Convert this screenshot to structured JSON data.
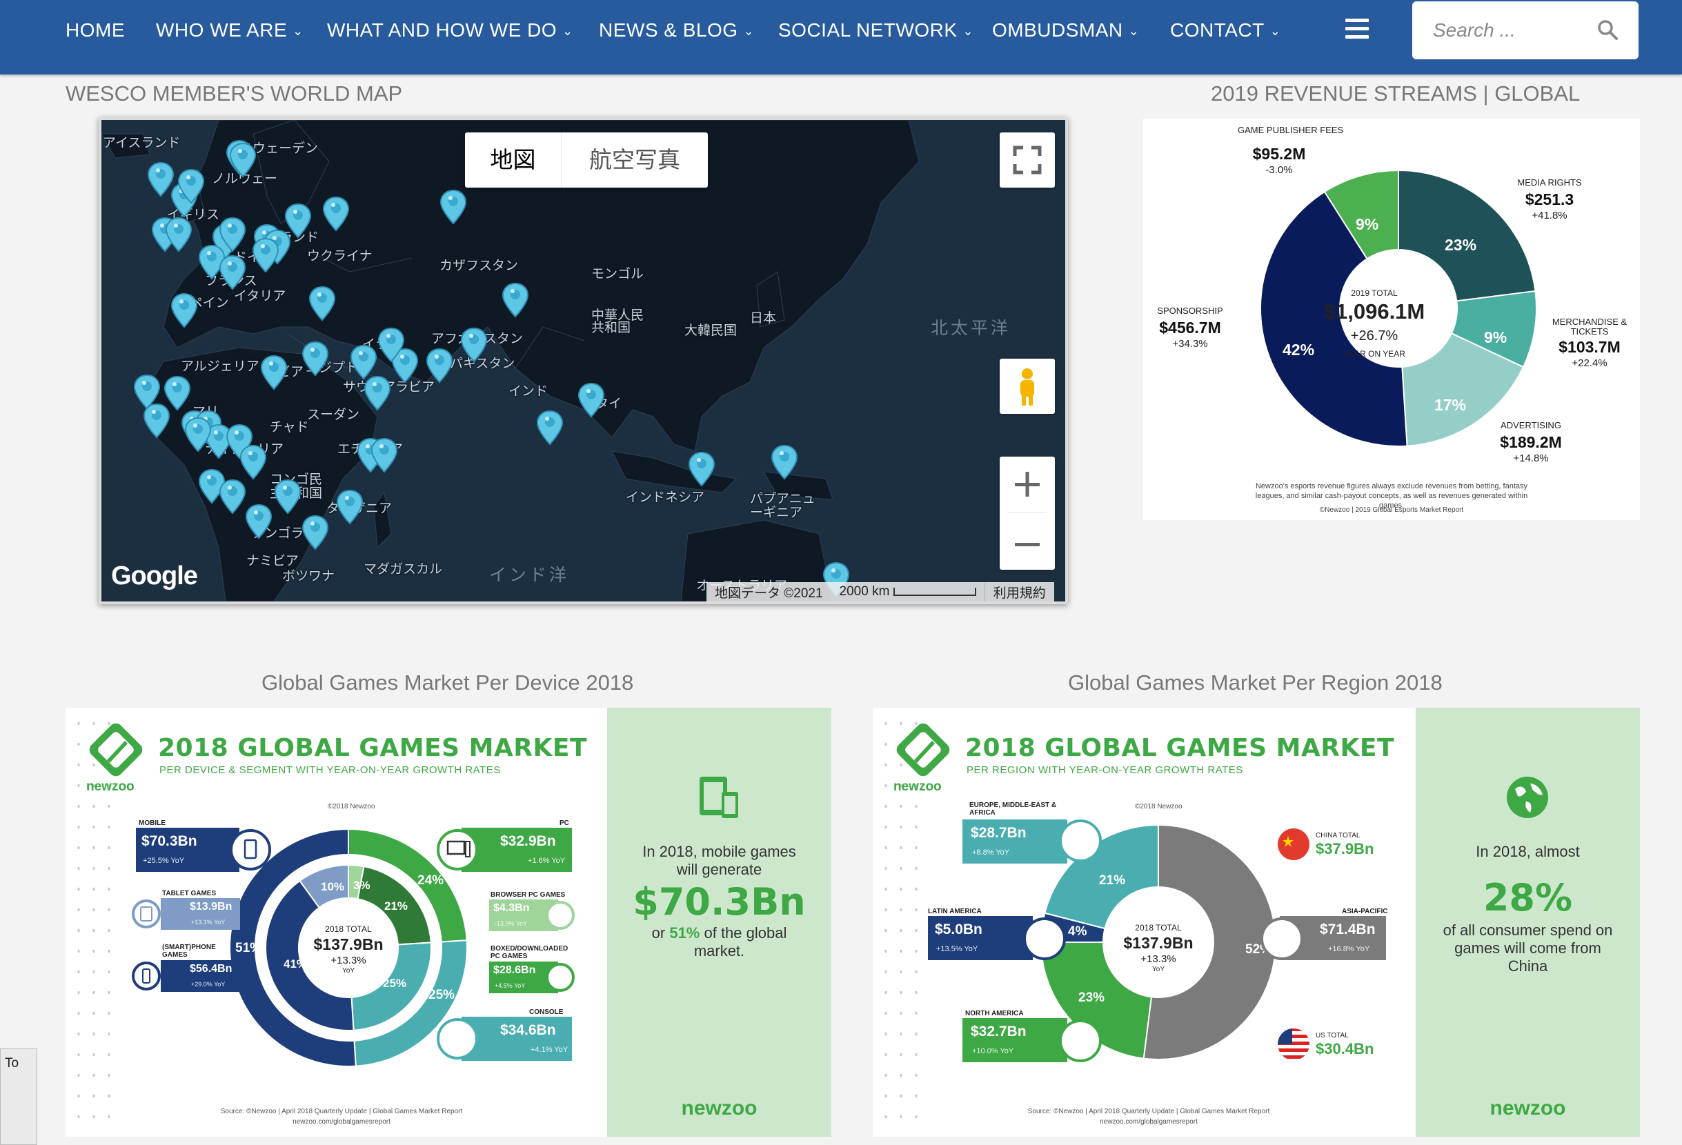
{
  "nav": {
    "items": [
      {
        "label": "HOME",
        "has_menu": false
      },
      {
        "label": "WHO WE ARE",
        "has_menu": true
      },
      {
        "label": "WHAT AND HOW WE DO",
        "has_menu": true
      },
      {
        "label": "NEWS & BLOG",
        "has_menu": true
      },
      {
        "label": "SOCIAL NETWORK",
        "has_menu": true
      },
      {
        "label": "OMBUDSMAN",
        "has_menu": true
      },
      {
        "label": "CONTACT",
        "has_menu": true
      }
    ],
    "chevron": "⌄",
    "search_placeholder": "Search ...",
    "bg_color": "#275b9d"
  },
  "map_section": {
    "title": "WESCO MEMBER'S WORLD MAP",
    "map_type_map": "地図",
    "map_type_satellite": "航空写真",
    "google": "Google",
    "attribution": "地図データ ©2021",
    "scale": "2000 km",
    "terms": "利用規約",
    "labels": {
      "iceland": "アイスランド",
      "sweden": "スウェーデン",
      "norway": "ノルウェー",
      "uk": "イギリス",
      "poland": "ポーランド",
      "germany": "ドイツ",
      "ukraine": "ウクライナ",
      "france": "フランス",
      "italy": "イタリア",
      "spain": "スペイン",
      "kazakhstan": "カザフスタン",
      "mongolia": "モンゴル",
      "china": "中華人民共和国",
      "korea": "大韓民国",
      "japan": "日本",
      "iraq": "イラク",
      "afghanistan": "アフガニスタン",
      "pakistan": "パキスタン",
      "india": "インド",
      "algeria": "アルジェリア",
      "libya": "リビア",
      "egypt": "エジプト",
      "saudi": "サウジアラビア",
      "thailand": "タイ",
      "mali": "マリ",
      "chad": "チャド",
      "sudan": "スーダン",
      "nigeria": "ナイジェリア",
      "ethiopia": "エチオピア",
      "congo": "コンゴ民主共和国",
      "tanzania": "タンザニア",
      "indonesia": "インドネシア",
      "png": "パプアニューギニア",
      "angola": "アンゴラ",
      "namibia": "ナミビア",
      "botswana": "ボツワナ",
      "madagascar": "マダガスカル",
      "australia": "オーストラリア",
      "north_pacific": "北太平洋",
      "indian_ocean": "インド洋"
    }
  },
  "revenue": {
    "title": "2019 REVENUE STREAMS | GLOBAL",
    "center_caption": "2019 TOTAL",
    "center_value": "$1,096.1M",
    "center_growth": "+26.7%",
    "center_growth_caption": "YEAR ON YEAR",
    "streams": [
      {
        "name": "GAME PUBLISHER FEES",
        "value": "$95.2M",
        "growth": "-3.0%",
        "share": "9%",
        "color": "#4caf50"
      },
      {
        "name": "MEDIA RIGHTS",
        "value": "$251.3",
        "growth": "+41.8%",
        "share": "23%",
        "color": "#1e5158"
      },
      {
        "name": "MERCHANDISE & TICKETS",
        "value": "$103.7M",
        "growth": "+22.4%",
        "share": "9%",
        "color": "#4aaea0"
      },
      {
        "name": "ADVERTISING",
        "value": "$189.2M",
        "growth": "+14.8%",
        "share": "17%",
        "color": "#95cec7"
      },
      {
        "name": "SPONSORSHIP",
        "value": "$456.7M",
        "growth": "+34.3%",
        "share": "42%",
        "color": "#0a1b5c"
      }
    ],
    "footnote": "Newzoo's esports revenue figures always exclude revenues from betting, fantasy leagues, and similar cash-payout concepts, as well as revenues generated within games.",
    "credit": "©Newzoo | 2019 Global Esports Market Report"
  },
  "device": {
    "section_title": "Global Games Market Per Device 2018",
    "title": "2018 GLOBAL GAMES MARKET",
    "subtitle": "PER DEVICE & SEGMENT WITH YEAR-ON-YEAR GROWTH RATES",
    "brand": "newzoo",
    "copyright": "©2018 Newzoo",
    "center_caption": "2018 TOTAL",
    "center_value": "$137.9Bn",
    "center_growth": "+13.3%",
    "center_yoy": "YoY",
    "segments": [
      {
        "name": "MOBILE",
        "value": "$70.3Bn",
        "growth": "+25.5% YoY"
      },
      {
        "name": "TABLET GAMES",
        "value": "$13.9Bn",
        "growth": "+13.1% YoY"
      },
      {
        "name": "(SMART)PHONE GAMES",
        "value": "$56.4Bn",
        "growth": "+29.0% YoY"
      },
      {
        "name": "PC",
        "value": "$32.9Bn",
        "growth": "+1.6% YoY"
      },
      {
        "name": "BROWSER PC GAMES",
        "value": "$4.3Bn",
        "growth": "-13.9% YoY"
      },
      {
        "name": "BOXED/DOWNLOADED PC GAMES",
        "value": "$28.6Bn",
        "growth": "+4.5% YoY"
      },
      {
        "name": "CONSOLE",
        "value": "$34.6Bn",
        "growth": "+4.1% YoY"
      }
    ],
    "ring_labels": {
      "mobile": "51%",
      "pc": "24%",
      "console": "25%",
      "tablet": "10%",
      "browser": "3%",
      "boxed": "21%",
      "phone": "41%",
      "console_inner": "25%"
    },
    "source": "Source: ©Newzoo | April 2018 Quarterly Update | Global Games Market Report",
    "url": "newzoo.com/globalgamesreport",
    "side_text1": "In 2018, mobile games will generate",
    "side_big": "$70.3Bn",
    "side_text2_a": "or ",
    "side_text2_pct": "51%",
    "side_text2_b": " of the global market.",
    "side_brand": "newzoo"
  },
  "region": {
    "section_title": "Global Games Market Per Region 2018",
    "title": "2018 GLOBAL GAMES MARKET",
    "subtitle": "PER REGION WITH YEAR-ON-YEAR GROWTH RATES",
    "brand": "newzoo",
    "copyright": "©2018 Newzoo",
    "center_caption": "2018 TOTAL",
    "center_value": "$137.9Bn",
    "center_growth": "+13.3%",
    "center_yoy": "YoY",
    "regions": [
      {
        "name": "EUROPE, MIDDLE-EAST & AFRICA",
        "value": "$28.7Bn",
        "growth": "+8.8% YoY",
        "share": "21%"
      },
      {
        "name": "LATIN AMERICA",
        "value": "$5.0Bn",
        "growth": "+13.5% YoY",
        "share": "4%"
      },
      {
        "name": "NORTH AMERICA",
        "value": "$32.7Bn",
        "growth": "+10.0% YoY",
        "share": "23%"
      },
      {
        "name": "ASIA-PACIFIC",
        "value": "$71.4Bn",
        "growth": "+16.8% YoY",
        "share": "52%"
      }
    ],
    "china": {
      "caption": "CHINA TOTAL",
      "value": "$37.9Bn"
    },
    "us": {
      "caption": "US TOTAL",
      "value": "$30.4Bn"
    },
    "source": "Source: ©Newzoo | April 2018 Quarterly Update | Global Games Market Report",
    "url": "newzoo.com/globalgamesreport",
    "side_text1": "In 2018, almost",
    "side_big": "28%",
    "side_text2": "of all consumer spend on games will come from China",
    "side_brand": "newzoo"
  },
  "corner_box": "To"
}
